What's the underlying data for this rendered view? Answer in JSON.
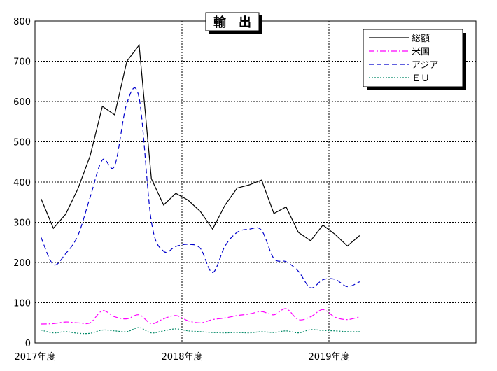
{
  "chart_data": {
    "type": "line",
    "title": "輸　出",
    "xlabel": "",
    "ylabel": "",
    "ylim": [
      0,
      800
    ],
    "yticks": [
      "0",
      "100",
      "200",
      "300",
      "400",
      "500",
      "600",
      "700",
      "800"
    ],
    "x_tick_labels": [
      "2017年度",
      "2018年度",
      "2019年度"
    ],
    "months_per_year": 12,
    "x_span_months": 36,
    "grid": true,
    "legend": "top-right",
    "series": [
      {
        "name": "総額",
        "color": "#000000",
        "style": "solid",
        "values": [
          358,
          285,
          320,
          383,
          465,
          588,
          567,
          700,
          740,
          408,
          343,
          372,
          355,
          327,
          283,
          342,
          385,
          393,
          405,
          322,
          338,
          275,
          254,
          293,
          270,
          241,
          267
        ]
      },
      {
        "name": "米国",
        "color": "#ff00ff",
        "style": "dashdot",
        "values": [
          47,
          48,
          52,
          50,
          50,
          80,
          65,
          60,
          70,
          48,
          60,
          68,
          55,
          50,
          58,
          62,
          68,
          72,
          78,
          70,
          85,
          58,
          65,
          83,
          64,
          58,
          65
        ]
      },
      {
        "name": "アジア",
        "color": "#0000cc",
        "style": "dashed",
        "values": [
          262,
          195,
          222,
          267,
          362,
          455,
          440,
          596,
          609,
          302,
          228,
          240,
          245,
          235,
          175,
          240,
          275,
          283,
          280,
          210,
          202,
          178,
          137,
          157,
          158,
          140,
          152
        ]
      },
      {
        "name": "ＥＵ",
        "color": "#008866",
        "style": "dotted",
        "values": [
          32,
          25,
          28,
          24,
          24,
          32,
          30,
          28,
          38,
          25,
          30,
          35,
          30,
          28,
          26,
          25,
          26,
          25,
          28,
          26,
          30,
          25,
          33,
          31,
          30,
          28,
          28
        ]
      }
    ]
  }
}
